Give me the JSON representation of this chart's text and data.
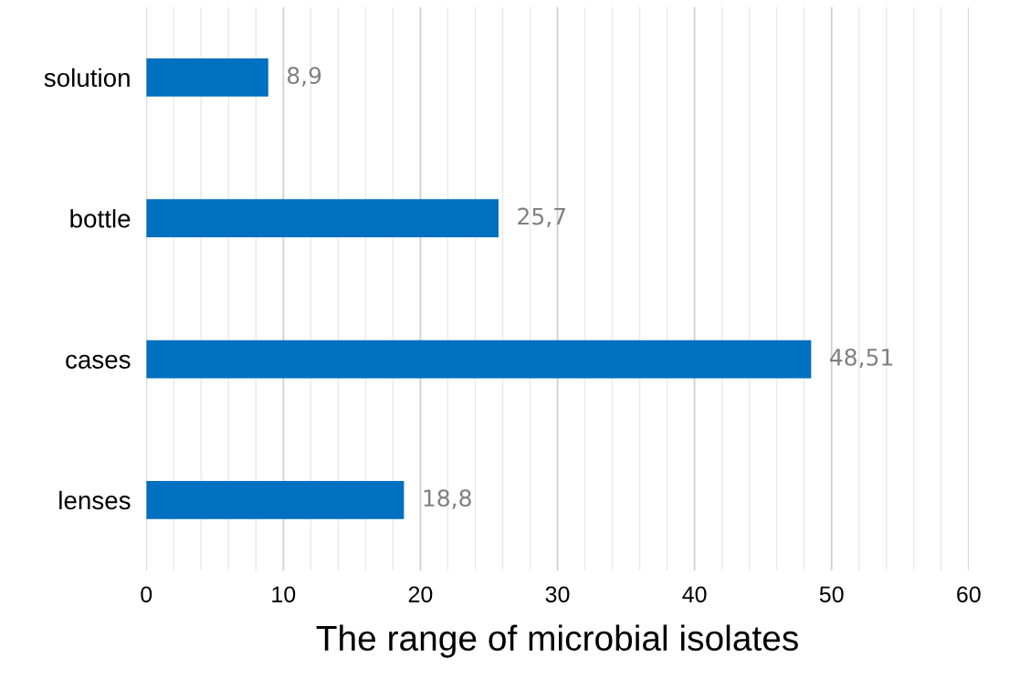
{
  "chart_data": {
    "type": "bar",
    "orientation": "horizontal",
    "xlabel": "The range of microbial isolates",
    "categories": [
      "solution",
      "bottle",
      "cases",
      "lenses"
    ],
    "values": [
      8.9,
      25.7,
      48.51,
      18.8
    ],
    "value_labels": [
      "8,9",
      "25,7",
      "48,51",
      "18,8"
    ],
    "color": "#0070c0",
    "xlim": [
      0,
      60
    ],
    "xticks": [
      0,
      {
        "value": 2,
        "label": null
      },
      {
        "value": 4,
        "label": null
      },
      {
        "value": 6,
        "label": null
      },
      {
        "value": 8,
        "label": null
      },
      10,
      {
        "value": 12,
        "label": null
      },
      {
        "value": 14,
        "label": null
      },
      {
        "value": 16,
        "label": null
      },
      {
        "value": 18,
        "label": null
      },
      20,
      {
        "value": 22,
        "label": null
      },
      {
        "value": 24,
        "label": null
      },
      {
        "value": 26,
        "label": null
      },
      {
        "value": 28,
        "label": null
      },
      30,
      {
        "value": 32,
        "label": null
      },
      {
        "value": 34,
        "label": null
      },
      {
        "value": 36,
        "label": null
      },
      {
        "value": 38,
        "label": null
      },
      40,
      {
        "value": 42,
        "label": null
      },
      {
        "value": 44,
        "label": null
      },
      {
        "value": 46,
        "label": null
      },
      {
        "value": 48,
        "label": null
      },
      50,
      {
        "value": 52,
        "label": null
      },
      {
        "value": 54,
        "label": null
      },
      {
        "value": 56,
        "label": null
      },
      {
        "value": 58,
        "label": null
      },
      60
    ],
    "grid": "x",
    "legend": false
  }
}
